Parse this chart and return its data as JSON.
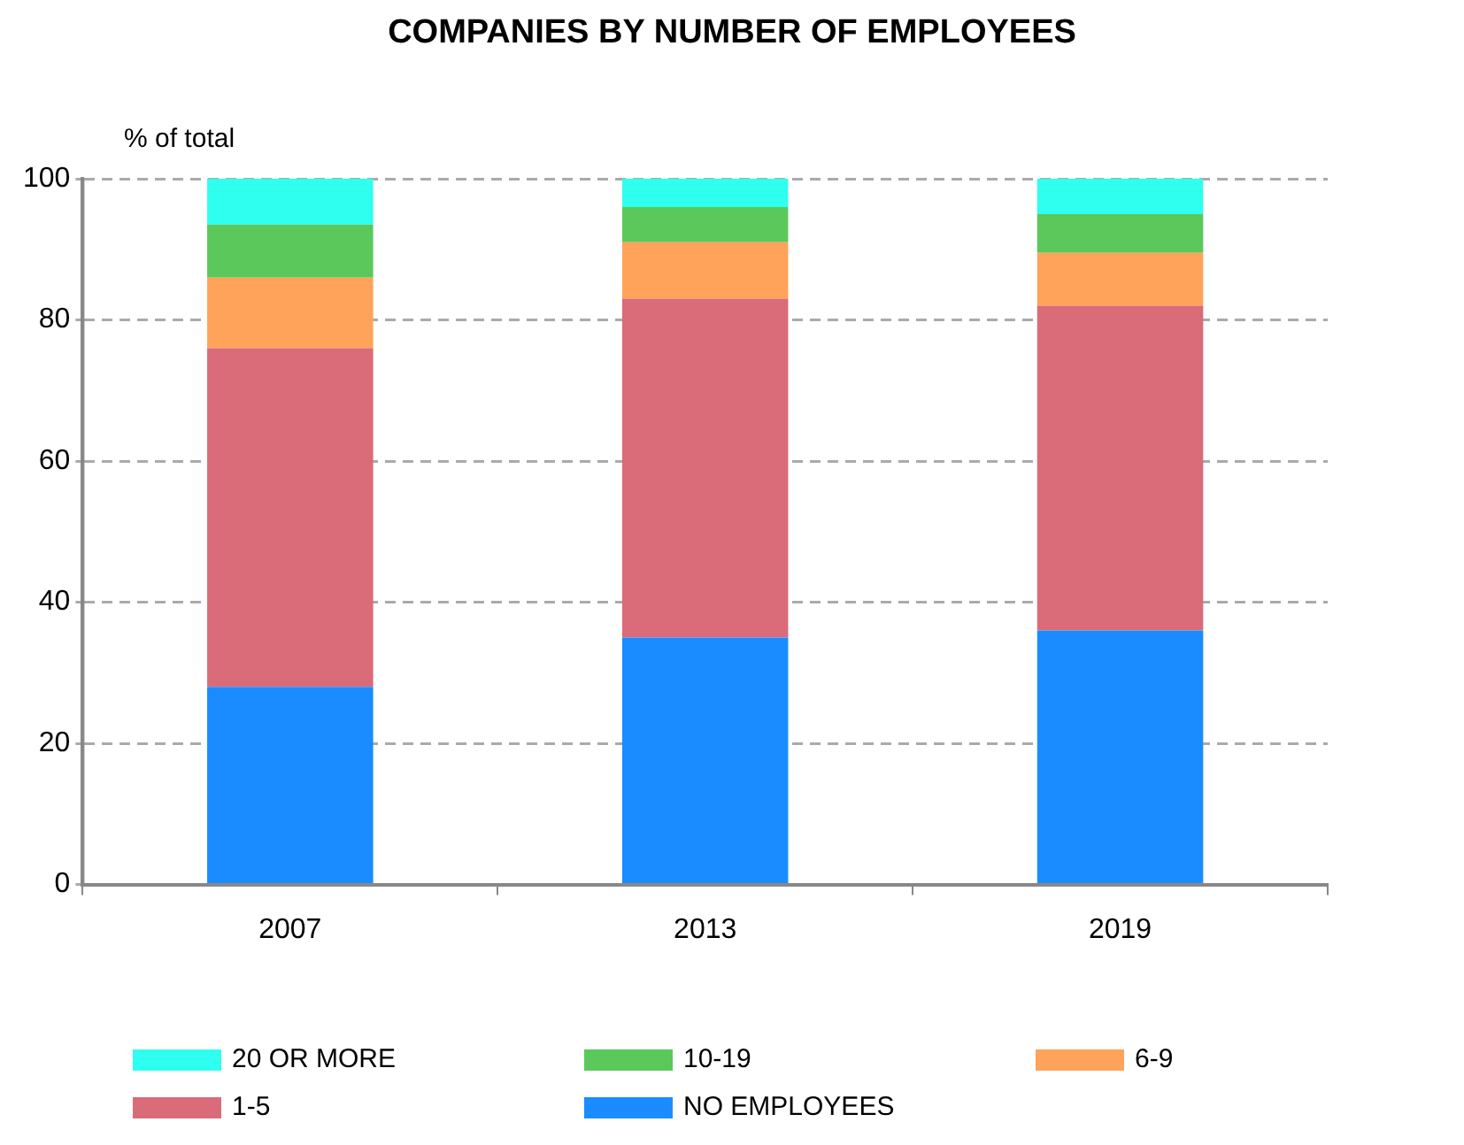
{
  "chart_data": {
    "type": "bar",
    "title": "COMPANIES BY NUMBER OF EMPLOYEES",
    "ylabel": "% of total",
    "categories": [
      "2007",
      "2013",
      "2019"
    ],
    "stacked": true,
    "ylim": [
      0,
      100
    ],
    "yticks": [
      0,
      20,
      40,
      60,
      80,
      100
    ],
    "grid": "y",
    "legend": "bottom",
    "series": [
      {
        "name": "NO EMPLOYEES",
        "color": "#1a8cff",
        "values": [
          28,
          35,
          36
        ]
      },
      {
        "name": "1-5",
        "color": "#da6b78",
        "values": [
          48,
          48,
          46
        ]
      },
      {
        "name": "6-9",
        "color": "#ffa35a",
        "values": [
          10,
          8,
          7.5
        ]
      },
      {
        "name": "10-19",
        "color": "#5bc85b",
        "values": [
          7.5,
          5,
          5.5
        ]
      },
      {
        "name": "20 OR MORE",
        "color": "#2effee",
        "values": [
          6.5,
          4,
          5
        ]
      }
    ]
  }
}
